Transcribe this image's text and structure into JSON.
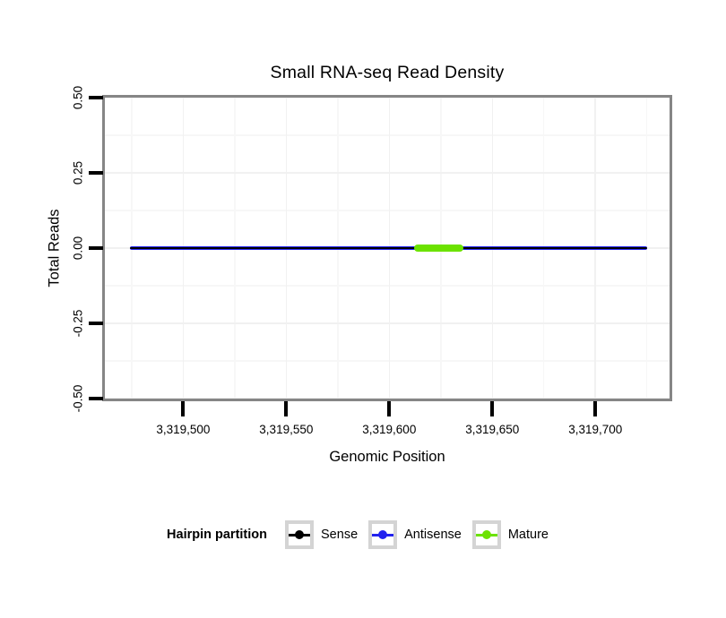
{
  "page": {
    "background": "#ffffff"
  },
  "chart_data": {
    "type": "line",
    "title": "Small RNA-seq Read Density",
    "xlabel": "Genomic Position",
    "ylabel": "Total Reads",
    "xlim": [
      3319462,
      3319736
    ],
    "ylim": [
      -0.5,
      0.5
    ],
    "x_ticks": {
      "values": [
        3319500,
        3319550,
        3319600,
        3319650,
        3319700
      ],
      "labels": [
        "3,319,500",
        "3,319,550",
        "3,319,600",
        "3,319,650",
        "3,319,700"
      ]
    },
    "y_ticks": {
      "values": [
        0.5,
        0.25,
        0,
        -0.25,
        -0.5
      ],
      "labels": [
        "0.50",
        "0.25",
        "0.00",
        "-0.25",
        "-0.50"
      ]
    },
    "grid": {
      "show_minor": true,
      "major_color": "#f1f1f1",
      "minor_color": "#f7f7f7"
    },
    "panel_border_color": "#868686",
    "tick_color": "#000000",
    "series": [
      {
        "name": "Antisense",
        "color": "#2222EE",
        "x": [
          3319474,
          3319725
        ],
        "y": [
          0,
          0
        ],
        "linewidth": 4,
        "z": 1
      },
      {
        "name": "Sense",
        "color": "#000000",
        "x": [
          3319474,
          3319725
        ],
        "y": [
          0,
          0
        ],
        "linewidth": 2,
        "z": 2
      },
      {
        "name": "Mature",
        "color": "#6CE200",
        "x": [
          3319612,
          3319636
        ],
        "y": [
          0,
          0
        ],
        "linewidth": 8,
        "z": 3
      }
    ],
    "legend": {
      "title": "Hairpin partition",
      "position": "bottom",
      "key_border_color": "#d4d4d4",
      "items": [
        {
          "label": "Sense",
          "color": "#000000"
        },
        {
          "label": "Antisense",
          "color": "#2222EE"
        },
        {
          "label": "Mature",
          "color": "#6CE200"
        }
      ]
    }
  }
}
